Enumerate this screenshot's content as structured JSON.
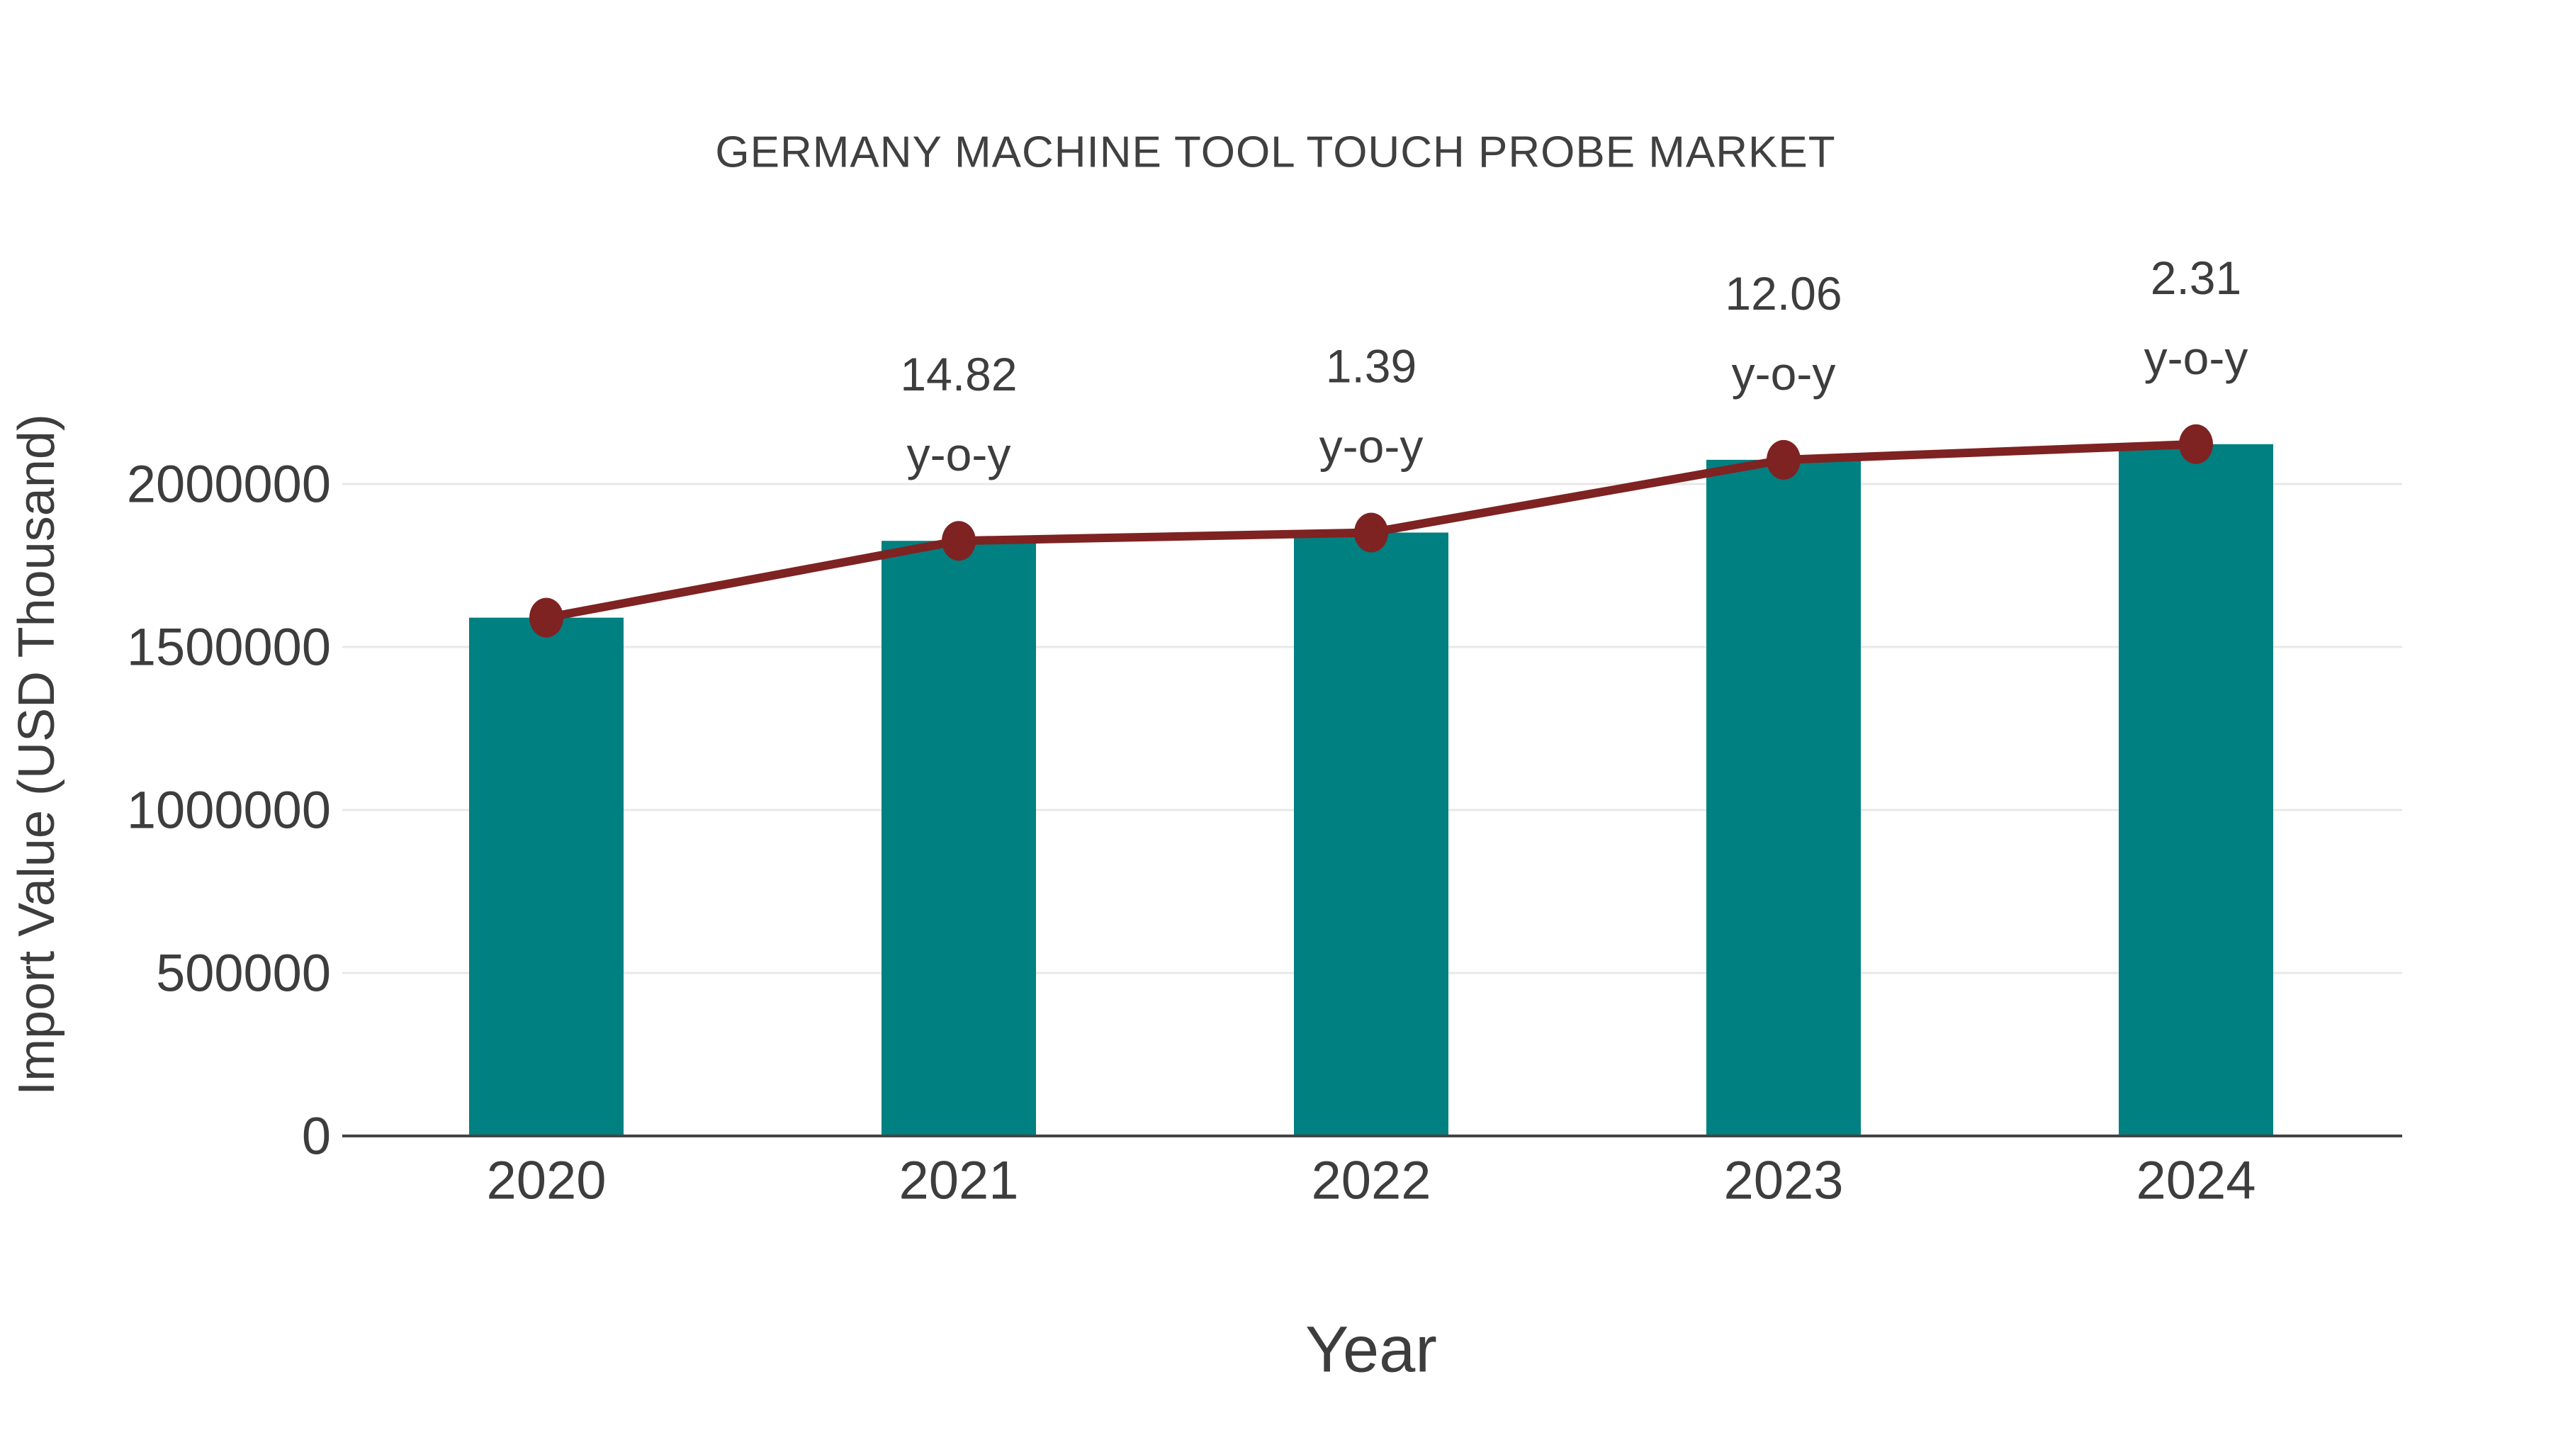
{
  "page": {
    "background_color": "#ffffff"
  },
  "chart_data": {
    "type": "bar",
    "subtype": "bar-with-line-overlay",
    "title": "GERMANY MACHINE TOOL TOUCH PROBE MARKET",
    "xlabel": "Year",
    "ylabel": "Import Value (USD Thousand)",
    "categories": [
      "2020",
      "2021",
      "2022",
      "2023",
      "2024"
    ],
    "series": [
      {
        "name": "Import Value bars",
        "type": "bar",
        "color": "#008080",
        "values": [
          1590000,
          1825638,
          1851015,
          2074247,
          2122163
        ]
      },
      {
        "name": "Import Value trend line",
        "type": "line",
        "color": "#7f2222",
        "marker": "circle",
        "values": [
          1590000,
          1825638,
          1851015,
          2074247,
          2122163
        ]
      }
    ],
    "annotations": [
      {
        "category": "2021",
        "value": "14.82",
        "suffix": "y-o-y"
      },
      {
        "category": "2022",
        "value": "1.39",
        "suffix": "y-o-y"
      },
      {
        "category": "2023",
        "value": "12.06",
        "suffix": "y-o-y"
      },
      {
        "category": "2024",
        "value": "2.31",
        "suffix": "y-o-y"
      }
    ],
    "y_ticks": [
      {
        "value": 0,
        "label": "0"
      },
      {
        "value": 500000,
        "label": "500000"
      },
      {
        "value": 1000000,
        "label": "1000000"
      },
      {
        "value": 1500000,
        "label": "1500000"
      },
      {
        "value": 2000000,
        "label": "2000000"
      }
    ],
    "ylim": [
      0,
      2500000
    ],
    "grid": {
      "horizontal": true,
      "vertical": false,
      "color": "#e8e8e8"
    },
    "axis_color": "#444444",
    "text_color": "#3d3d3d",
    "legend": "none"
  }
}
